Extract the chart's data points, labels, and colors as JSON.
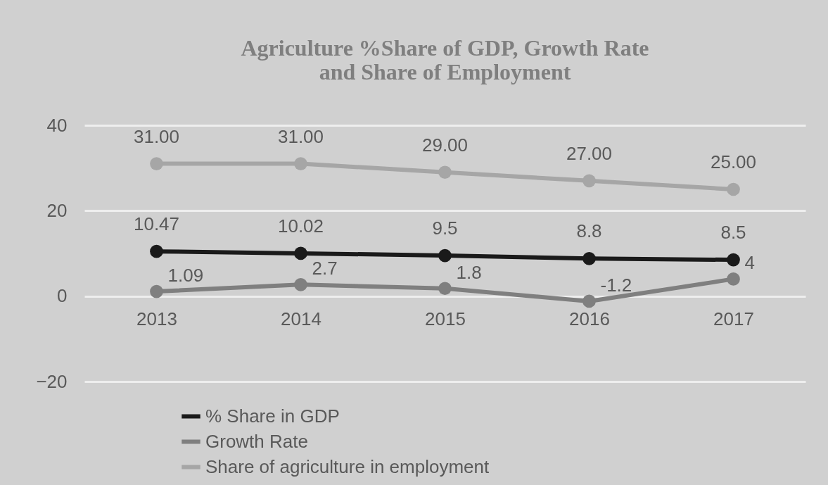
{
  "chart_data": {
    "type": "line",
    "title": "Agriculture %Share of GDP, Growth Rate\nand Share of Employment",
    "categories": [
      "2013",
      "2014",
      "2015",
      "2016",
      "2017"
    ],
    "series": [
      {
        "name": "% Share in GDP",
        "color": "#1a1a1a",
        "values": [
          10.47,
          10.02,
          9.5,
          8.8,
          8.5
        ],
        "value_labels": [
          "10.47",
          "10.02",
          "9.5",
          "8.8",
          "8.5"
        ]
      },
      {
        "name": "Growth Rate",
        "color": "#7f7f7f",
        "values": [
          1.09,
          2.7,
          1.8,
          -1.2,
          4
        ],
        "value_labels": [
          "1.09",
          "2.7",
          "1.8",
          "-1.2",
          "4"
        ]
      },
      {
        "name": "Share of agriculture in employment",
        "color": "#a6a6a6",
        "values": [
          31,
          31,
          29,
          27,
          25
        ],
        "value_labels": [
          "31.00",
          "31.00",
          "29.00",
          "27.00",
          "25.00"
        ]
      }
    ],
    "ylim": [
      -20,
      40
    ],
    "yticks": [
      -20,
      0,
      20,
      40
    ],
    "grid": "y",
    "legend": "bottom",
    "marker": "circle",
    "line_style": "solid"
  }
}
